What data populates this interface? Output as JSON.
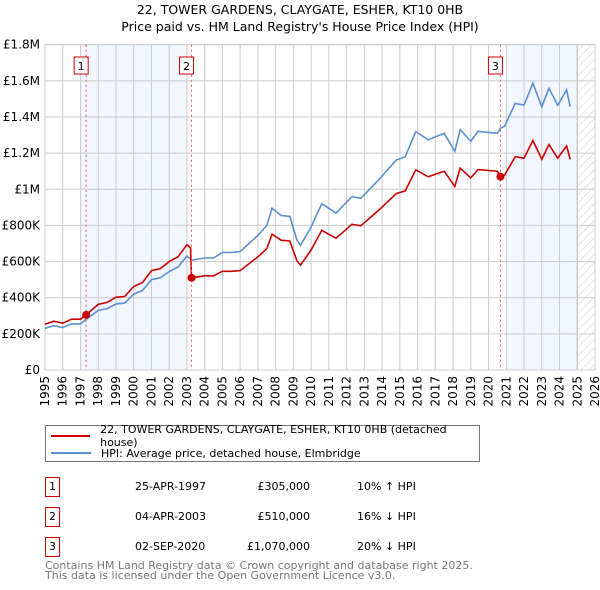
{
  "chart_data": {
    "type": "line",
    "title": "22, TOWER GARDENS, CLAYGATE, ESHER, KT10 0HB",
    "subtitle": "Price paid vs. HM Land Registry's House Price Index (HPI)",
    "xlim": [
      1995,
      2026
    ],
    "ylim": [
      0,
      1800000
    ],
    "grid": true,
    "x_ticks": [
      "1995",
      "1996",
      "1997",
      "1998",
      "1999",
      "2000",
      "2001",
      "2002",
      "2003",
      "2004",
      "2005",
      "2006",
      "2007",
      "2008",
      "2009",
      "2010",
      "2011",
      "2012",
      "2013",
      "2014",
      "2015",
      "2016",
      "2017",
      "2018",
      "2019",
      "2020",
      "2021",
      "2022",
      "2023",
      "2024",
      "2025",
      "2026"
    ],
    "y_ticks": [
      {
        "value": 0,
        "label": "£0"
      },
      {
        "value": 200000,
        "label": "£200K"
      },
      {
        "value": 400000,
        "label": "£400K"
      },
      {
        "value": 600000,
        "label": "£600K"
      },
      {
        "value": 800000,
        "label": "£800K"
      },
      {
        "value": 1000000,
        "label": "£1M"
      },
      {
        "value": 1200000,
        "label": "£1.2M"
      },
      {
        "value": 1400000,
        "label": "£1.4M"
      },
      {
        "value": 1600000,
        "label": "£1.6M"
      },
      {
        "value": 1800000,
        "label": "£1.8M"
      }
    ],
    "x": [
      1995.0,
      1995.5,
      1996.0,
      1996.5,
      1997.0,
      1997.32,
      1998.0,
      1998.5,
      1999.0,
      1999.5,
      2000.0,
      2000.5,
      2001.0,
      2001.5,
      2002.0,
      2002.5,
      2003.0,
      2003.2,
      2003.26,
      2004.0,
      2004.5,
      2005.0,
      2005.5,
      2006.0,
      2006.5,
      2007.0,
      2007.5,
      2007.8,
      2008.3,
      2008.8,
      2009.2,
      2009.4,
      2010.0,
      2010.6,
      2011.4,
      2012.3,
      2012.8,
      2013.8,
      2014.8,
      2015.3,
      2015.9,
      2016.6,
      2017.5,
      2018.1,
      2018.4,
      2019.0,
      2019.4,
      2020.5,
      2020.67,
      2020.9,
      2021.5,
      2022.0,
      2022.5,
      2023.0,
      2023.4,
      2023.9,
      2024.4,
      2024.6
    ],
    "series": [
      {
        "name": "22, TOWER GARDENS, CLAYGATE, ESHER, KT10 0HB (detached house)",
        "color": "#cc0000",
        "values": [
          253000,
          270000,
          259000,
          281000,
          281000,
          305000,
          363000,
          374000,
          402000,
          407000,
          462000,
          484000,
          550000,
          561000,
          600000,
          627000,
          693000,
          677000,
          510000,
          521000,
          521000,
          546000,
          546000,
          550000,
          588000,
          626000,
          672000,
          752000,
          718000,
          714000,
          605000,
          580000,
          664000,
          773000,
          729000,
          806000,
          798000,
          883000,
          976000,
          991000,
          1108000,
          1069000,
          1100000,
          1016000,
          1117000,
          1063000,
          1109000,
          1100000,
          1070000,
          1078000,
          1180000,
          1172000,
          1270000,
          1166000,
          1247000,
          1172000,
          1240000,
          1166000
        ]
      },
      {
        "name": "HPI: Average price, detached house, Elmbridge",
        "color": "#5b8fd4",
        "values": [
          230000,
          245000,
          235000,
          255000,
          255000,
          280000,
          330000,
          340000,
          365000,
          370000,
          420000,
          440000,
          500000,
          510000,
          545000,
          570000,
          630000,
          615000,
          607000,
          620000,
          620000,
          650000,
          650000,
          655000,
          700000,
          745000,
          800000,
          895000,
          855000,
          850000,
          720000,
          690000,
          791000,
          920000,
          868000,
          959000,
          950000,
          1051000,
          1162000,
          1180000,
          1319000,
          1273000,
          1310000,
          1210000,
          1330000,
          1265000,
          1320000,
          1310000,
          1338000,
          1348000,
          1475000,
          1465000,
          1587000,
          1457000,
          1559000,
          1465000,
          1550000,
          1457000
        ]
      }
    ],
    "sales": [
      {
        "num": "1",
        "year": 1997.32,
        "price": 305000,
        "date": "25-APR-1997",
        "price_label": "£305,000",
        "hpi": "10% ↑ HPI"
      },
      {
        "num": "2",
        "year": 2003.26,
        "price": 510000,
        "date": "04-APR-2003",
        "price_label": "£510,000",
        "hpi": "16% ↓ HPI"
      },
      {
        "num": "3",
        "year": 2020.67,
        "price": 1070000,
        "date": "02-SEP-2020",
        "price_label": "£1,070,000",
        "hpi": "20% ↓ HPI"
      }
    ],
    "shaded_ranges": [
      [
        1997.0,
        2003.0
      ],
      [
        2021.0,
        2025.0
      ]
    ],
    "hatched_from": 2025.0
  },
  "legend": {
    "property": "22, TOWER GARDENS, CLAYGATE, ESHER, KT10 0HB (detached house)",
    "hpi": "HPI: Average price, detached house, Elmbridge"
  },
  "footer": {
    "line1": "Contains HM Land Registry data © Crown copyright and database right 2025.",
    "line2": "This data is licensed under the Open Government Licence v3.0."
  }
}
